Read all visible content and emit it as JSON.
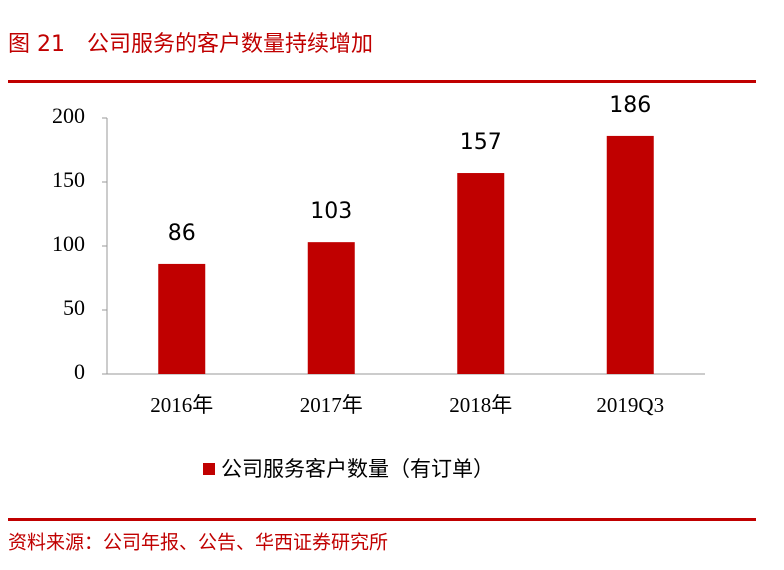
{
  "chart_data": {
    "type": "bar",
    "title": "图 21　公司服务的客户数量持续增加",
    "categories": [
      "2016年",
      "2017年",
      "2018年",
      "2019Q3"
    ],
    "series": [
      {
        "name": "公司服务客户数量（有订单）",
        "color": "#c00000",
        "values": [
          86,
          103,
          157,
          186
        ]
      }
    ],
    "ylim": [
      0,
      200
    ],
    "yticks": [
      0,
      50,
      100,
      150,
      200
    ],
    "grid": false,
    "legend": "bottom",
    "source": "资料来源：公司年报、公告、华西证券研究所"
  }
}
